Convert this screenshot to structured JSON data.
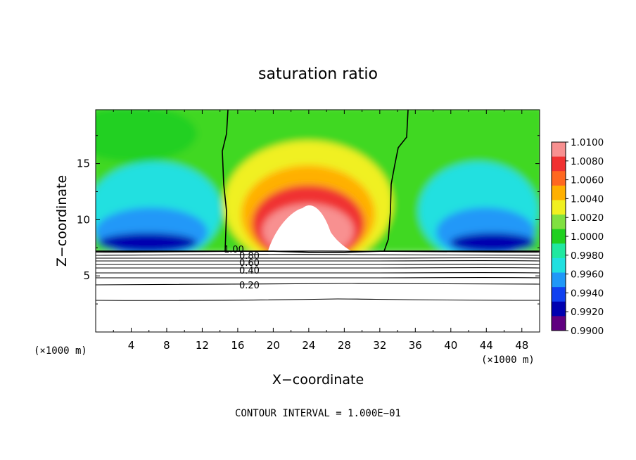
{
  "chart_data": {
    "type": "heatmap",
    "title": "saturation ratio",
    "xlabel": "X−coordinate",
    "ylabel": "Z−coordinate",
    "x_unit_left": "(×1000 m)",
    "x_unit_right": "(×1000 m)",
    "footer": "CONTOUR INTERVAL = 1.000E−01",
    "xlim": [
      0,
      50
    ],
    "ylim": [
      0,
      19.8
    ],
    "x_ticks": [
      "4",
      "8",
      "12",
      "16",
      "20",
      "24",
      "28",
      "32",
      "36",
      "40",
      "44",
      "48"
    ],
    "x_tick_values": [
      4,
      8,
      12,
      16,
      20,
      24,
      28,
      32,
      36,
      40,
      44,
      48
    ],
    "y_ticks": [
      "5",
      "10",
      "15"
    ],
    "y_tick_values": [
      5,
      10,
      15
    ],
    "colorbar": {
      "min": 0.99,
      "max": 1.01,
      "labels": [
        "1.0100",
        "1.0080",
        "1.0060",
        "1.0040",
        "1.0020",
        "1.0000",
        "0.9980",
        "0.9960",
        "0.9940",
        "0.9920",
        "0.9900"
      ],
      "colors": [
        "#f89090",
        "#f03030",
        "#ff6820",
        "#ffb000",
        "#f0f020",
        "#80e040",
        "#20d020",
        "#20e8a0",
        "#20e0e0",
        "#2098f8",
        "#1040f0",
        "#0000b0",
        "#600080"
      ]
    },
    "contour_labels": [
      "1.00",
      "0.80",
      "0.60",
      "0.40",
      "0.20"
    ],
    "contour_levels": [
      1.0,
      0.8,
      0.6,
      0.4,
      0.2
    ],
    "above_max_color": "#ffffff",
    "series": [
      {
        "x": [
          0,
          6,
          12,
          16,
          20,
          24,
          28,
          32,
          36,
          42,
          50
        ],
        "y": [
          7.2,
          7.2,
          7.2,
          7.2,
          7.2,
          7.1,
          7.1,
          7.2,
          7.2,
          7.2,
          7.2
        ]
      }
    ]
  }
}
